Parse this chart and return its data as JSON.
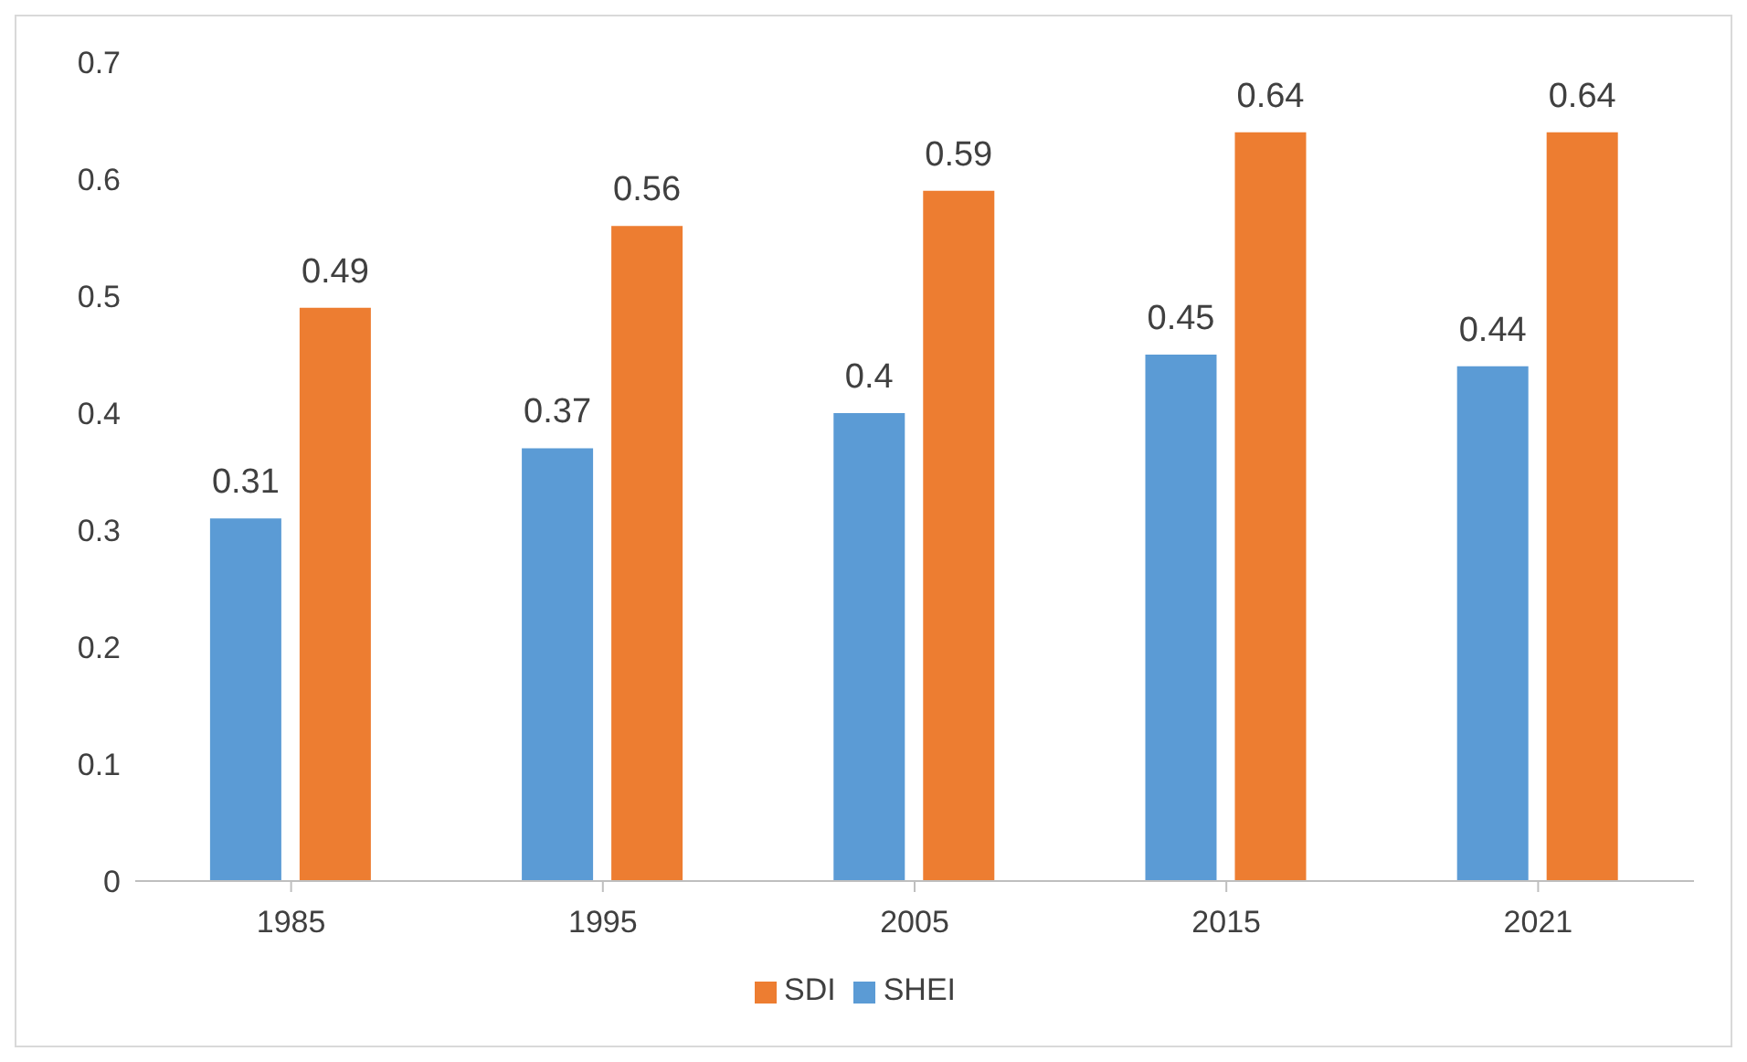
{
  "chart_data": {
    "type": "bar",
    "categories": [
      "1985",
      "1995",
      "2005",
      "2015",
      "2021"
    ],
    "series": [
      {
        "name": "SHEI",
        "color": "#5b9bd5",
        "values": [
          0.31,
          0.37,
          0.4,
          0.45,
          0.44
        ]
      },
      {
        "name": "SDI",
        "color": "#ed7d31",
        "values": [
          0.49,
          0.56,
          0.59,
          0.64,
          0.64
        ]
      }
    ],
    "ylim": [
      0,
      0.7
    ],
    "yticks": [
      0,
      0.1,
      0.2,
      0.3,
      0.4,
      0.5,
      0.6,
      0.7
    ],
    "grid": false,
    "legend": "bottom",
    "data_labels": true
  }
}
